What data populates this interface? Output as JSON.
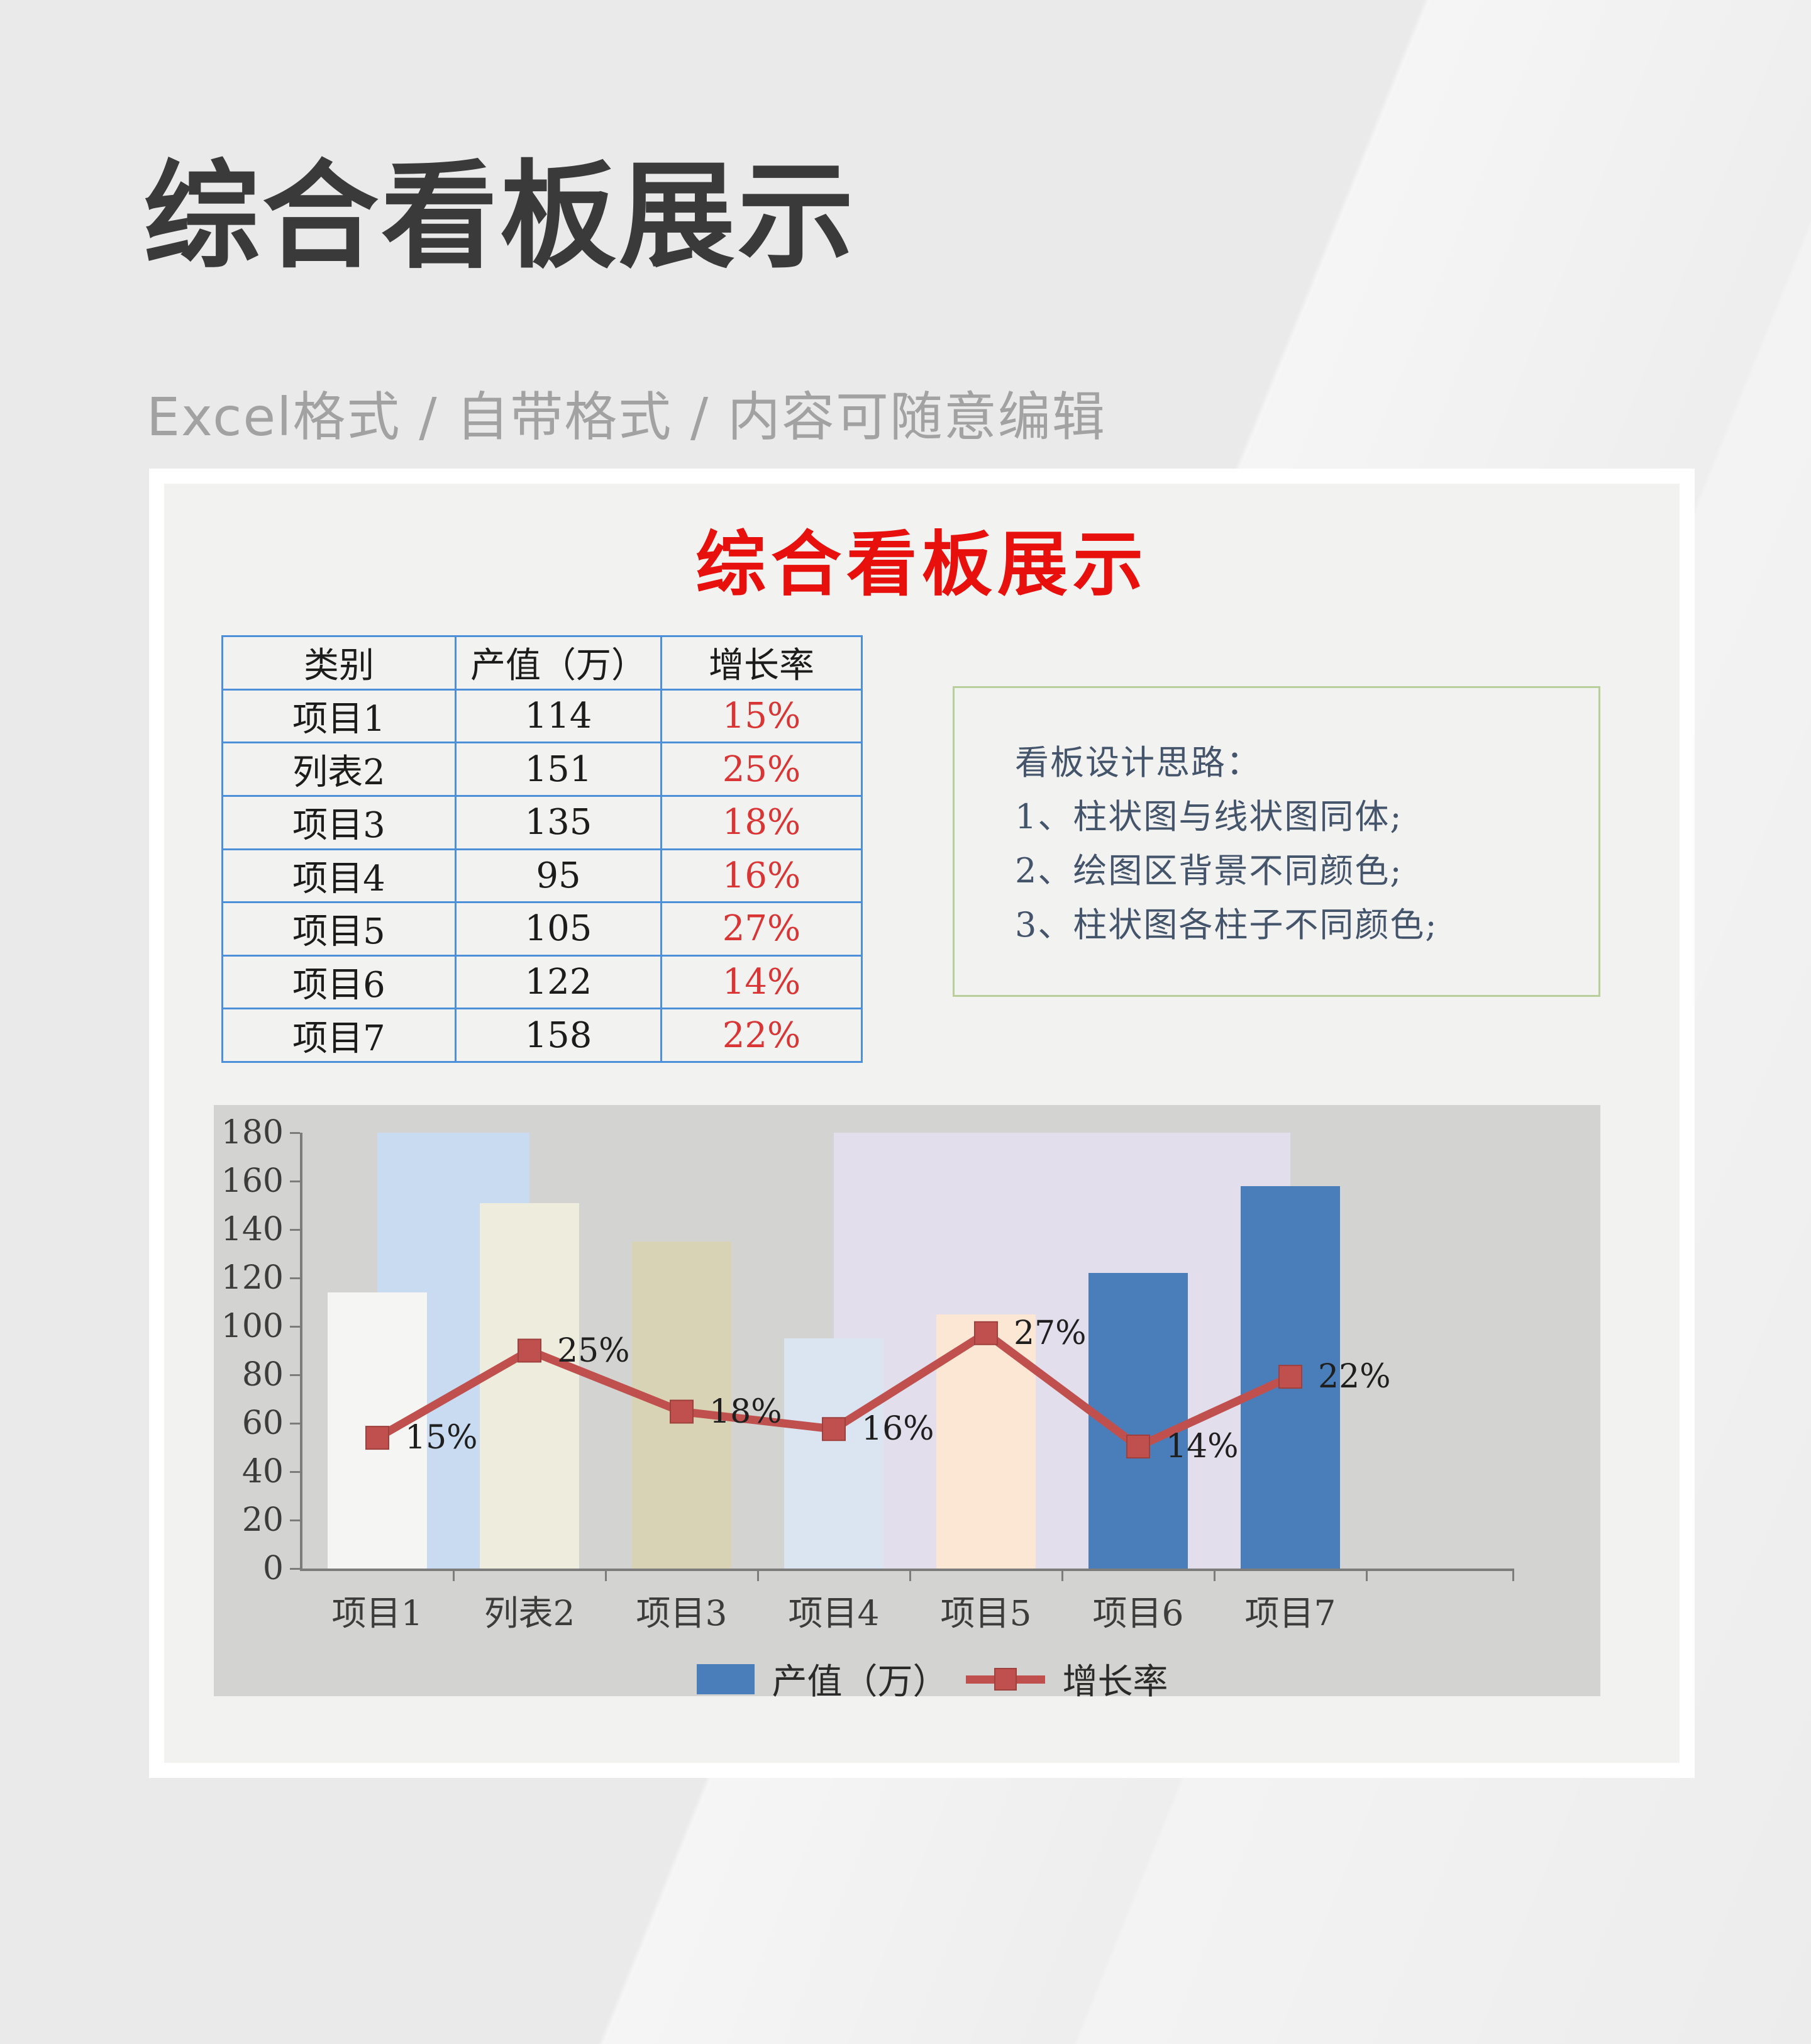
{
  "page": {
    "title": "综合看板展示",
    "subtitle": "Excel格式 / 自带格式 / 内容可随意编辑"
  },
  "card": {
    "title": "综合看板展示",
    "table": {
      "headers": [
        "类别",
        "产值（万）",
        "增长率"
      ],
      "rows": [
        {
          "category": "项目1",
          "value": "114",
          "rate": "15%"
        },
        {
          "category": "列表2",
          "value": "151",
          "rate": "25%"
        },
        {
          "category": "项目3",
          "value": "135",
          "rate": "18%"
        },
        {
          "category": "项目4",
          "value": "95",
          "rate": "16%"
        },
        {
          "category": "项目5",
          "value": "105",
          "rate": "27%"
        },
        {
          "category": "项目6",
          "value": "122",
          "rate": "14%"
        },
        {
          "category": "项目7",
          "value": "158",
          "rate": "22%"
        }
      ],
      "border_color": "#4e8fd9",
      "rate_color": "#d93535"
    },
    "notes": {
      "title": "看板设计思路：",
      "items": [
        "1、柱状图与线状图同体;",
        "2、绘图区背景不同颜色;",
        "3、柱状图各柱子不同颜色;"
      ],
      "border_color": "#b9cf9b",
      "text_color": "#44546a"
    }
  },
  "chart_data": {
    "type": "bar+line",
    "categories": [
      "项目1",
      "列表2",
      "项目3",
      "项目4",
      "项目5",
      "项目6",
      "项目7"
    ],
    "series": [
      {
        "name": "产值（万）",
        "type": "bar",
        "values": [
          114,
          151,
          135,
          95,
          105,
          122,
          158
        ],
        "bar_colors": [
          "#f5f5f3",
          "#eeecdd",
          "#d9d3b6",
          "#dbe5f1",
          "#fce6d4",
          "#4a7ebb",
          "#4a7ebb"
        ],
        "legend_color": "#4a7ebb"
      },
      {
        "name": "增长率",
        "type": "line",
        "values": [
          15,
          25,
          18,
          16,
          27,
          14,
          22
        ],
        "labels": [
          "15%",
          "25%",
          "18%",
          "16%",
          "27%",
          "14%",
          "22%"
        ],
        "color": "#c0504d",
        "marker": "square",
        "marker_border": "#9e403d",
        "pct_to_left_axis_factor": 3.6
      }
    ],
    "ylim": [
      0,
      180
    ],
    "ytick_step": 20,
    "yticks": [
      0,
      20,
      40,
      60,
      80,
      100,
      120,
      140,
      160,
      180
    ],
    "plot_background": "#d3d3d2",
    "background_bands": [
      {
        "from_category": 0,
        "to_category": 1,
        "color": "#c9dbf1"
      },
      {
        "from_category": 3,
        "to_category": 6,
        "color": "#e3deec"
      }
    ],
    "axis_color": "#7c7c7c",
    "grid": false,
    "legend_position": "bottom-center"
  }
}
